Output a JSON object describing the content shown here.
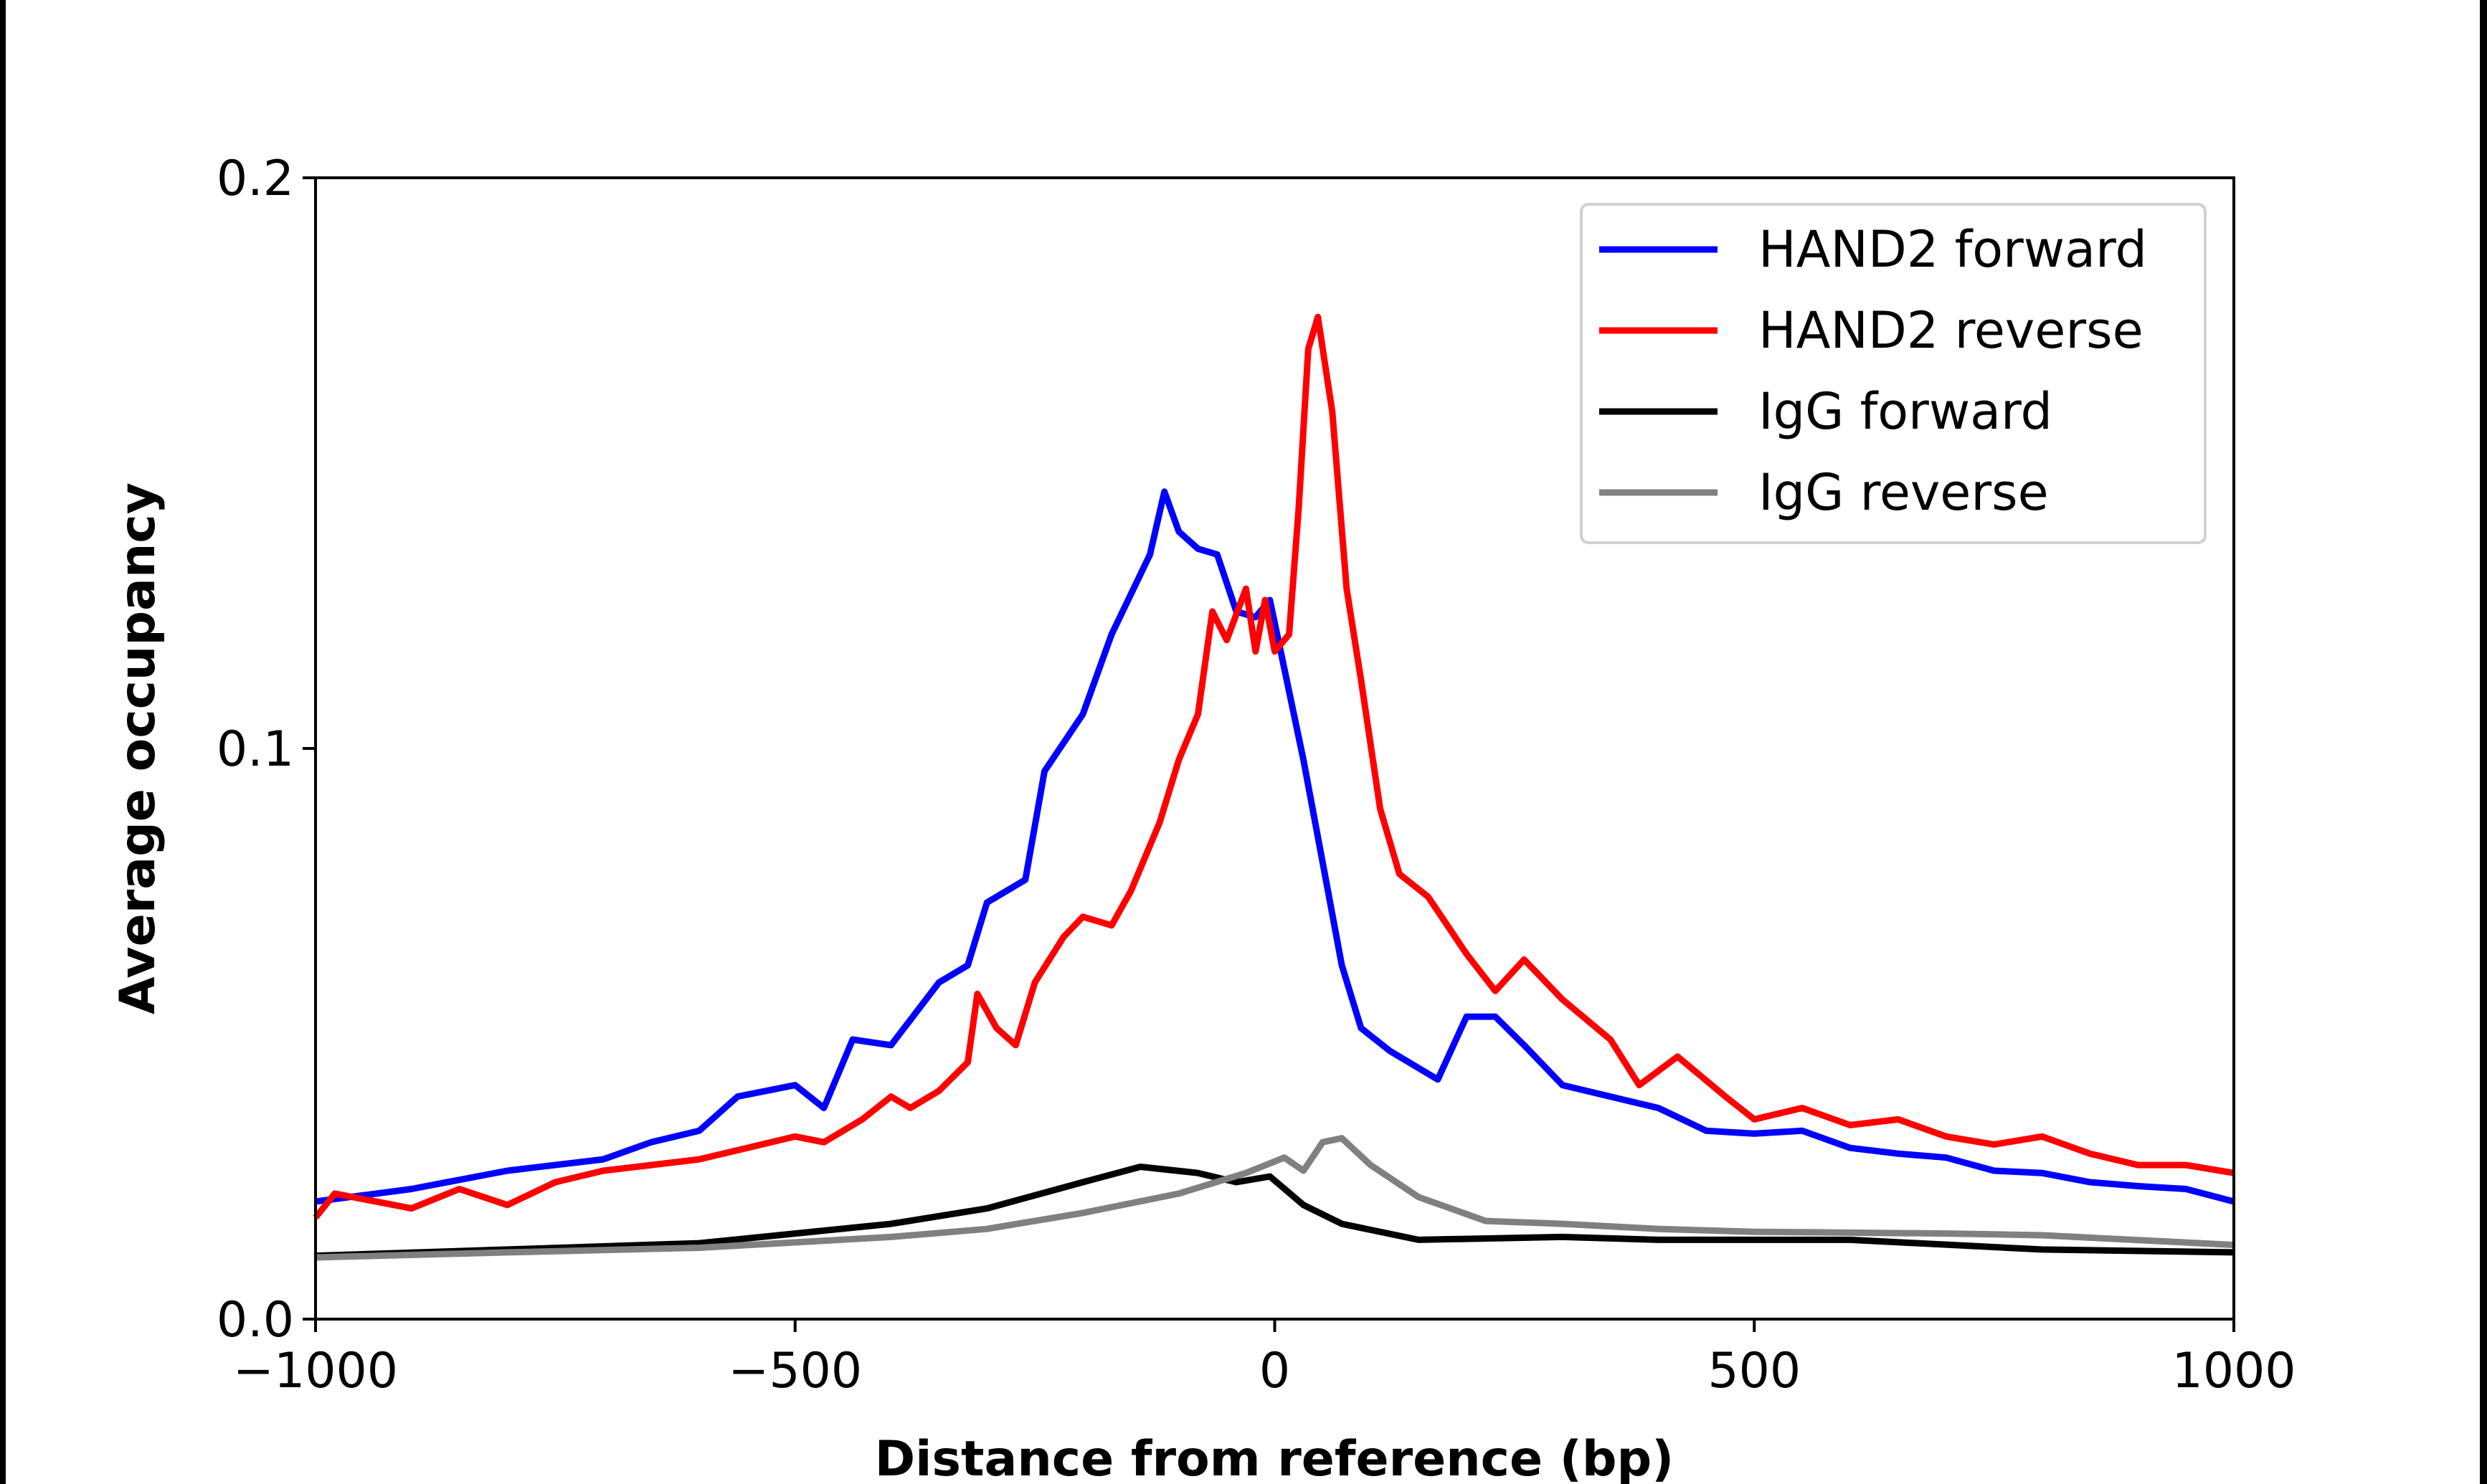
{
  "chart_data": {
    "type": "line",
    "title": "",
    "xlabel": "Distance from reference (bp)",
    "ylabel": "Average occupancy",
    "xlim": [
      -1000,
      1000
    ],
    "ylim": [
      0.0,
      0.2
    ],
    "xticks": [
      -1000,
      -500,
      0,
      500,
      1000
    ],
    "xtick_labels": [
      "−1000",
      "−500",
      "0",
      "500",
      "1000"
    ],
    "yticks": [
      0.0,
      0.1,
      0.2
    ],
    "ytick_labels": [
      "0.0",
      "0.1",
      "0.2"
    ],
    "grid": false,
    "legend_position": "top-right",
    "series": [
      {
        "name": "HAND2 forward",
        "color": "#0000ff",
        "x": [
          -1000,
          -900,
          -800,
          -700,
          -650,
          -600,
          -560,
          -500,
          -470,
          -440,
          -400,
          -350,
          -320,
          -300,
          -260,
          -240,
          -200,
          -170,
          -150,
          -130,
          -115,
          -100,
          -80,
          -60,
          -40,
          -20,
          -5,
          10,
          30,
          50,
          70,
          90,
          120,
          170,
          200,
          230,
          260,
          300,
          350,
          400,
          450,
          500,
          550,
          600,
          650,
          700,
          750,
          800,
          850,
          900,
          950,
          1000
        ],
        "y": [
          0.0206,
          0.0228,
          0.026,
          0.028,
          0.031,
          0.033,
          0.039,
          0.041,
          0.037,
          0.049,
          0.048,
          0.059,
          0.062,
          0.073,
          0.077,
          0.096,
          0.106,
          0.12,
          0.127,
          0.134,
          0.145,
          0.138,
          0.135,
          0.134,
          0.124,
          0.123,
          0.126,
          0.114,
          0.098,
          0.08,
          0.062,
          0.051,
          0.047,
          0.042,
          0.053,
          0.053,
          0.048,
          0.041,
          0.039,
          0.037,
          0.033,
          0.0325,
          0.033,
          0.03,
          0.029,
          0.0283,
          0.026,
          0.0256,
          0.024,
          0.0233,
          0.0228,
          0.0206
        ]
      },
      {
        "name": "HAND2 reverse",
        "color": "#ff0000",
        "x": [
          -1000,
          -980,
          -900,
          -850,
          -800,
          -750,
          -700,
          -650,
          -600,
          -550,
          -500,
          -470,
          -430,
          -400,
          -380,
          -350,
          -320,
          -310,
          -290,
          -270,
          -250,
          -220,
          -200,
          -170,
          -150,
          -120,
          -100,
          -80,
          -65,
          -50,
          -30,
          -20,
          -10,
          0,
          15,
          25,
          35,
          45,
          60,
          75,
          90,
          110,
          130,
          160,
          200,
          230,
          260,
          300,
          350,
          380,
          420,
          470,
          500,
          550,
          600,
          650,
          700,
          750,
          800,
          850,
          900,
          950,
          1000
        ],
        "y": [
          0.0178,
          0.022,
          0.0194,
          0.0228,
          0.02,
          0.024,
          0.026,
          0.027,
          0.028,
          0.03,
          0.032,
          0.031,
          0.035,
          0.039,
          0.037,
          0.04,
          0.045,
          0.057,
          0.051,
          0.048,
          0.059,
          0.067,
          0.0705,
          0.069,
          0.075,
          0.087,
          0.098,
          0.106,
          0.124,
          0.119,
          0.128,
          0.117,
          0.126,
          0.117,
          0.12,
          0.142,
          0.17,
          0.1756,
          0.159,
          0.128,
          0.112,
          0.0894,
          0.078,
          0.074,
          0.064,
          0.0575,
          0.063,
          0.056,
          0.049,
          0.041,
          0.046,
          0.039,
          0.035,
          0.037,
          0.034,
          0.035,
          0.032,
          0.0306,
          0.032,
          0.029,
          0.027,
          0.027,
          0.0256
        ]
      },
      {
        "name": "IgG forward",
        "color": "#000000",
        "x": [
          -1000,
          -800,
          -600,
          -500,
          -400,
          -300,
          -200,
          -140,
          -80,
          -40,
          -5,
          30,
          70,
          150,
          300,
          400,
          600,
          800,
          1000
        ],
        "y": [
          0.0111,
          0.0122,
          0.0133,
          0.015,
          0.0167,
          0.0194,
          0.024,
          0.0267,
          0.0256,
          0.024,
          0.025,
          0.02,
          0.0167,
          0.0139,
          0.0144,
          0.0139,
          0.0139,
          0.0122,
          0.0117
        ]
      },
      {
        "name": "IgG reverse",
        "color": "#808080",
        "x": [
          -1000,
          -800,
          -600,
          -400,
          -300,
          -200,
          -100,
          -30,
          10,
          30,
          50,
          70,
          100,
          150,
          220,
          300,
          400,
          500,
          700,
          800,
          1000
        ],
        "y": [
          0.0108,
          0.0117,
          0.0125,
          0.0144,
          0.0158,
          0.0186,
          0.022,
          0.0256,
          0.0283,
          0.026,
          0.031,
          0.0317,
          0.027,
          0.0214,
          0.0172,
          0.0167,
          0.0158,
          0.0153,
          0.015,
          0.0147,
          0.013
        ]
      }
    ]
  }
}
